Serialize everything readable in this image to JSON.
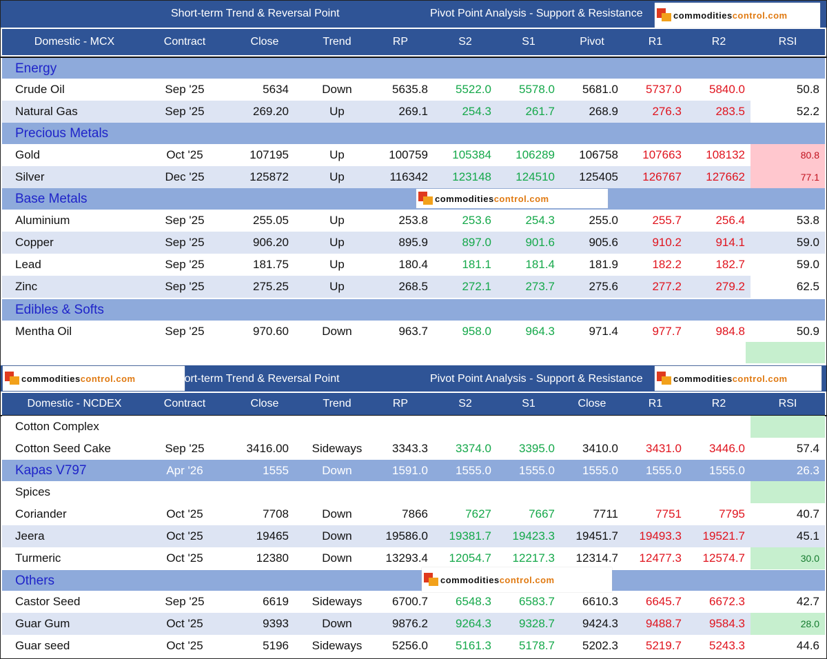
{
  "watermark": "commoditiescontrol.com",
  "mcx": {
    "title_left": "Short-term Trend & Reversal Point",
    "title_right": "Pivot Point Analysis - Support & Resistance",
    "columns": [
      "Domestic - MCX",
      "Contract",
      "Close",
      "Trend",
      "RP",
      "S2",
      "S1",
      "Pivot",
      "R1",
      "R2",
      "RSI"
    ],
    "groups": [
      {
        "name": "Energy",
        "rows": [
          {
            "name": "Crude Oil",
            "contract": "Sep '25",
            "close": "5634",
            "trend": "Down",
            "rp": "5635.8",
            "s2": "5522.0",
            "s1": "5578.0",
            "pivot": "5681.0",
            "r1": "5737.0",
            "r2": "5840.0",
            "rsi": "50.8"
          },
          {
            "name": "Natural Gas",
            "contract": "Sep '25",
            "close": "269.20",
            "trend": "Up",
            "rp": "269.1",
            "s2": "254.3",
            "s1": "261.7",
            "pivot": "268.9",
            "r1": "276.3",
            "r2": "283.5",
            "rsi": "52.2"
          }
        ]
      },
      {
        "name": "Precious Metals",
        "rows": [
          {
            "name": "Gold",
            "contract": "Oct '25",
            "close": "107195",
            "trend": "Up",
            "rp": "100759",
            "s2": "105384",
            "s1": "106289",
            "pivot": "106758",
            "r1": "107663",
            "r2": "108132",
            "rsi": "80.8"
          },
          {
            "name": "Silver",
            "contract": "Dec '25",
            "close": "125872",
            "trend": "Up",
            "rp": "116342",
            "s2": "123148",
            "s1": "124510",
            "pivot": "125405",
            "r1": "126767",
            "r2": "127662",
            "rsi": "77.1"
          }
        ]
      },
      {
        "name": "Base Metals",
        "rows": [
          {
            "name": "Aluminium",
            "contract": "Sep '25",
            "close": "255.05",
            "trend": "Up",
            "rp": "253.8",
            "s2": "253.6",
            "s1": "254.3",
            "pivot": "255.0",
            "r1": "255.7",
            "r2": "256.4",
            "rsi": "53.8"
          },
          {
            "name": "Copper",
            "contract": "Sep '25",
            "close": "906.20",
            "trend": "Up",
            "rp": "895.9",
            "s2": "897.0",
            "s1": "901.6",
            "pivot": "905.6",
            "r1": "910.2",
            "r2": "914.1",
            "rsi": "59.0"
          },
          {
            "name": "Lead",
            "contract": "Sep '25",
            "close": "181.75",
            "trend": "Up",
            "rp": "180.4",
            "s2": "181.1",
            "s1": "181.4",
            "pivot": "181.9",
            "r1": "182.2",
            "r2": "182.7",
            "rsi": "59.0"
          },
          {
            "name": "Zinc",
            "contract": "Sep '25",
            "close": "275.25",
            "trend": "Up",
            "rp": "268.5",
            "s2": "272.1",
            "s1": "273.7",
            "pivot": "275.6",
            "r1": "277.2",
            "r2": "279.2",
            "rsi": "62.5"
          }
        ]
      },
      {
        "name": "Edibles & Softs",
        "rows": [
          {
            "name": "Mentha Oil",
            "contract": "Sep '25",
            "close": "970.60",
            "trend": "Down",
            "rp": "963.7",
            "s2": "958.0",
            "s1": "964.3",
            "pivot": "971.4",
            "r1": "977.7",
            "r2": "984.8",
            "rsi": "50.9"
          }
        ]
      }
    ]
  },
  "ncdex": {
    "title_left": "Short-term Trend & Reversal Point",
    "title_right": "Pivot Point Analysis - Support & Resistance",
    "columns": [
      "Domestic - NCDEX",
      "Contract",
      "Close",
      "Trend",
      "RP",
      "S2",
      "S1",
      "Close",
      "R1",
      "R2",
      "RSI"
    ],
    "groups": [
      {
        "name": "Cotton Complex",
        "rows": [
          {
            "name": "Cotton Seed Cake",
            "contract": "Sep '25",
            "close": "3416.00",
            "trend": "Sideways",
            "rp": "3343.3",
            "s2": "3374.0",
            "s1": "3395.0",
            "pivot": "3410.0",
            "r1": "3431.0",
            "r2": "3446.0",
            "rsi": "57.4"
          },
          {
            "name": "Kapas V797",
            "contract": "Apr '26",
            "close": "1555",
            "trend": "Down",
            "rp": "1591.0",
            "s2": "1555.0",
            "s1": "1555.0",
            "pivot": "1555.0",
            "r1": "1555.0",
            "r2": "1555.0",
            "rsi": "26.3"
          }
        ]
      },
      {
        "name": "Spices",
        "rows": [
          {
            "name": "Coriander",
            "contract": "Oct '25",
            "close": "7708",
            "trend": "Down",
            "rp": "7866",
            "s2": "7627",
            "s1": "7667",
            "pivot": "7711",
            "r1": "7751",
            "r2": "7795",
            "rsi": "40.7"
          },
          {
            "name": "Jeera",
            "contract": "Oct '25",
            "close": "19465",
            "trend": "Down",
            "rp": "19586.0",
            "s2": "19381.7",
            "s1": "19423.3",
            "pivot": "19451.7",
            "r1": "19493.3",
            "r2": "19521.7",
            "rsi": "45.1"
          },
          {
            "name": "Turmeric",
            "contract": "Oct '25",
            "close": "12380",
            "trend": "Down",
            "rp": "13293.4",
            "s2": "12054.7",
            "s1": "12217.3",
            "pivot": "12314.7",
            "r1": "12477.3",
            "r2": "12574.7",
            "rsi": "30.0"
          }
        ]
      },
      {
        "name": "Others",
        "rows": [
          {
            "name": "Castor Seed",
            "contract": "Sep '25",
            "close": "6619",
            "trend": "Sideways",
            "rp": "6700.7",
            "s2": "6548.3",
            "s1": "6583.7",
            "pivot": "6610.3",
            "r1": "6645.7",
            "r2": "6672.3",
            "rsi": "42.7"
          },
          {
            "name": "Guar Gum",
            "contract": "Oct '25",
            "close": "9393",
            "trend": "Down",
            "rp": "9876.2",
            "s2": "9264.3",
            "s1": "9328.7",
            "pivot": "9424.3",
            "r1": "9488.7",
            "r2": "9584.3",
            "rsi": "28.0"
          },
          {
            "name": "Guar seed",
            "contract": "Oct '25",
            "close": "5196",
            "trend": "Sideways",
            "rp": "5256.0",
            "s2": "5161.3",
            "s1": "5178.7",
            "pivot": "5202.3",
            "r1": "5219.7",
            "r2": "5243.3",
            "rsi": "44.6"
          }
        ]
      }
    ]
  },
  "colors": {
    "header_blue": "#2f5496",
    "category_band": "#8eaadb",
    "category_text": "#1f24c9",
    "row_shade": "#dde4f3",
    "support_green": "#15a84a",
    "resistance_red": "#e0141e",
    "rsi_overbought": "#ffc7ce",
    "rsi_oversold": "#c6efce"
  }
}
